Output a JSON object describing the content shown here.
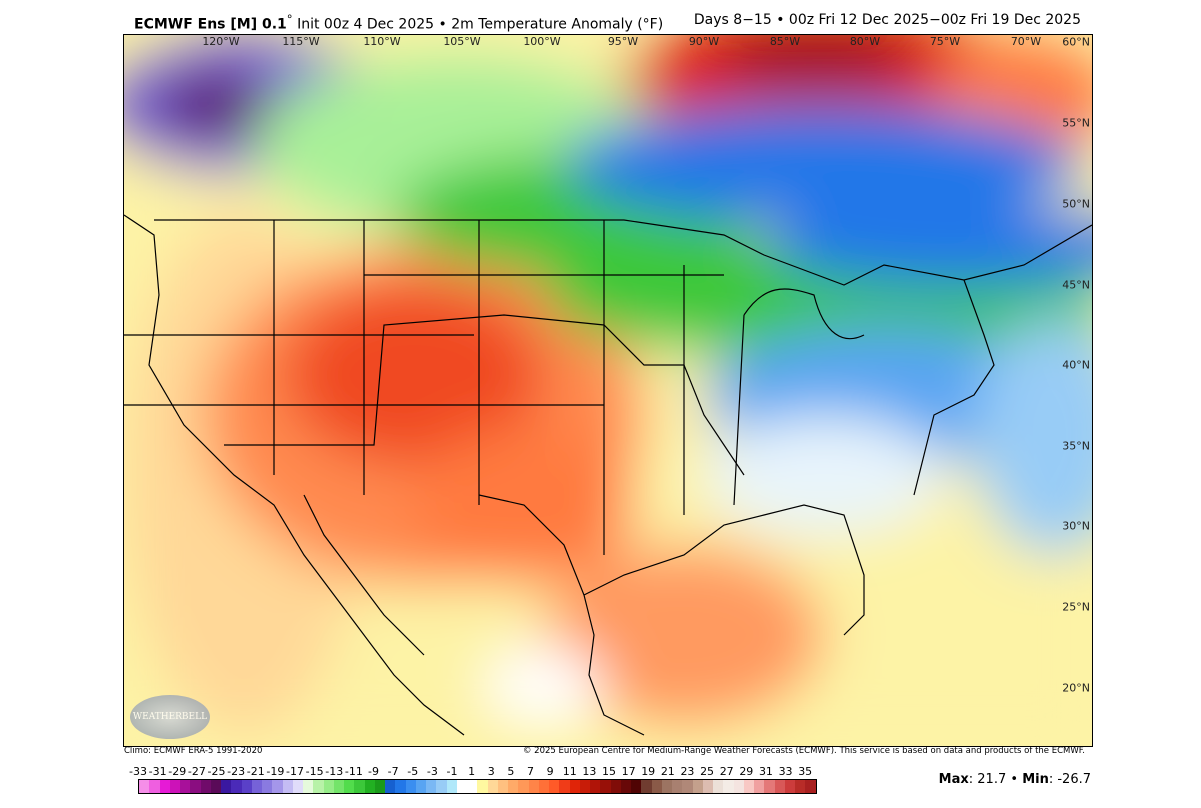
{
  "header": {
    "model": "ECMWF Ens [M] 0.1",
    "degree": "°",
    "init": "Init 00z 4 Dec 2025",
    "sep": "•",
    "field": "2m Temperature Anomaly (°F)",
    "valid": "Days 8−15 • 00z Fri 12 Dec 2025−00z Fri 19 Dec 2025"
  },
  "map": {
    "lon_labels": [
      "120°W",
      "115°W",
      "110°W",
      "105°W",
      "100°W",
      "95°W",
      "90°W",
      "85°W",
      "80°W",
      "75°W",
      "70°W"
    ],
    "lat_labels": [
      "60°N",
      "55°N",
      "50°N",
      "45°N",
      "40°N",
      "35°N",
      "30°N",
      "25°N",
      "20°N"
    ],
    "logo": "WeatherBELL"
  },
  "footer": {
    "climo": "Climo: ECMWF ERA-5 1991-2020",
    "copyright": "© 2025 European Centre for Medium-Range Weather Forecasts (ECMWF). This service is based on data and products of the ECMWF."
  },
  "colorbar": {
    "labels": [
      "-33",
      "-31",
      "-29",
      "-27",
      "-25",
      "-23",
      "-21",
      "-19",
      "-17",
      "-15",
      "-13",
      "-11",
      "-9",
      "-7",
      "-5",
      "-3",
      "-1",
      "1",
      "3",
      "5",
      "7",
      "9",
      "11",
      "13",
      "15",
      "17",
      "19",
      "21",
      "23",
      "25",
      "27",
      "29",
      "31",
      "33",
      "35"
    ],
    "colors": [
      "#f58ee8",
      "#ef5fe0",
      "#e61ad6",
      "#cc12b8",
      "#a8109a",
      "#8a0d80",
      "#700b6a",
      "#5a0a58",
      "#3a18a0",
      "#4a2ab8",
      "#5a40c8",
      "#7662d8",
      "#8a7ae0",
      "#a496ea",
      "#c4bcf4",
      "#e0dcfa",
      "#e6fadc",
      "#b8f2a8",
      "#96ec88",
      "#74e46a",
      "#52dc4c",
      "#3cc83a",
      "#22b022",
      "#1a9a1a",
      "#1660d0",
      "#2277e8",
      "#3a8ef0",
      "#58a4f2",
      "#7ab8f4",
      "#98ccf6",
      "#b0e8fa",
      "#ffffff",
      "#ffffff",
      "#fff8a0",
      "#ffd898",
      "#ffc080",
      "#ffaa68",
      "#ff9858",
      "#ff8448",
      "#ff7038",
      "#ff5a28",
      "#f03c18",
      "#e02408",
      "#c81c08",
      "#b01408",
      "#981008",
      "#800c08",
      "#680808",
      "#500404",
      "#703c30",
      "#8a5a48",
      "#9c7462",
      "#a88070",
      "#b08878",
      "#c4a08c",
      "#dcbcb0",
      "#ece0d8",
      "#f4ece6",
      "#f4e4e0",
      "#f8c8c4",
      "#f0a0a0",
      "#e47878",
      "#d85858",
      "#cc3c3c",
      "#b82c28",
      "#a82020"
    ]
  },
  "stats": {
    "max_label": "Max",
    "max": "21.7",
    "min_label": "Min",
    "min": "-26.7",
    "sep": "•"
  }
}
